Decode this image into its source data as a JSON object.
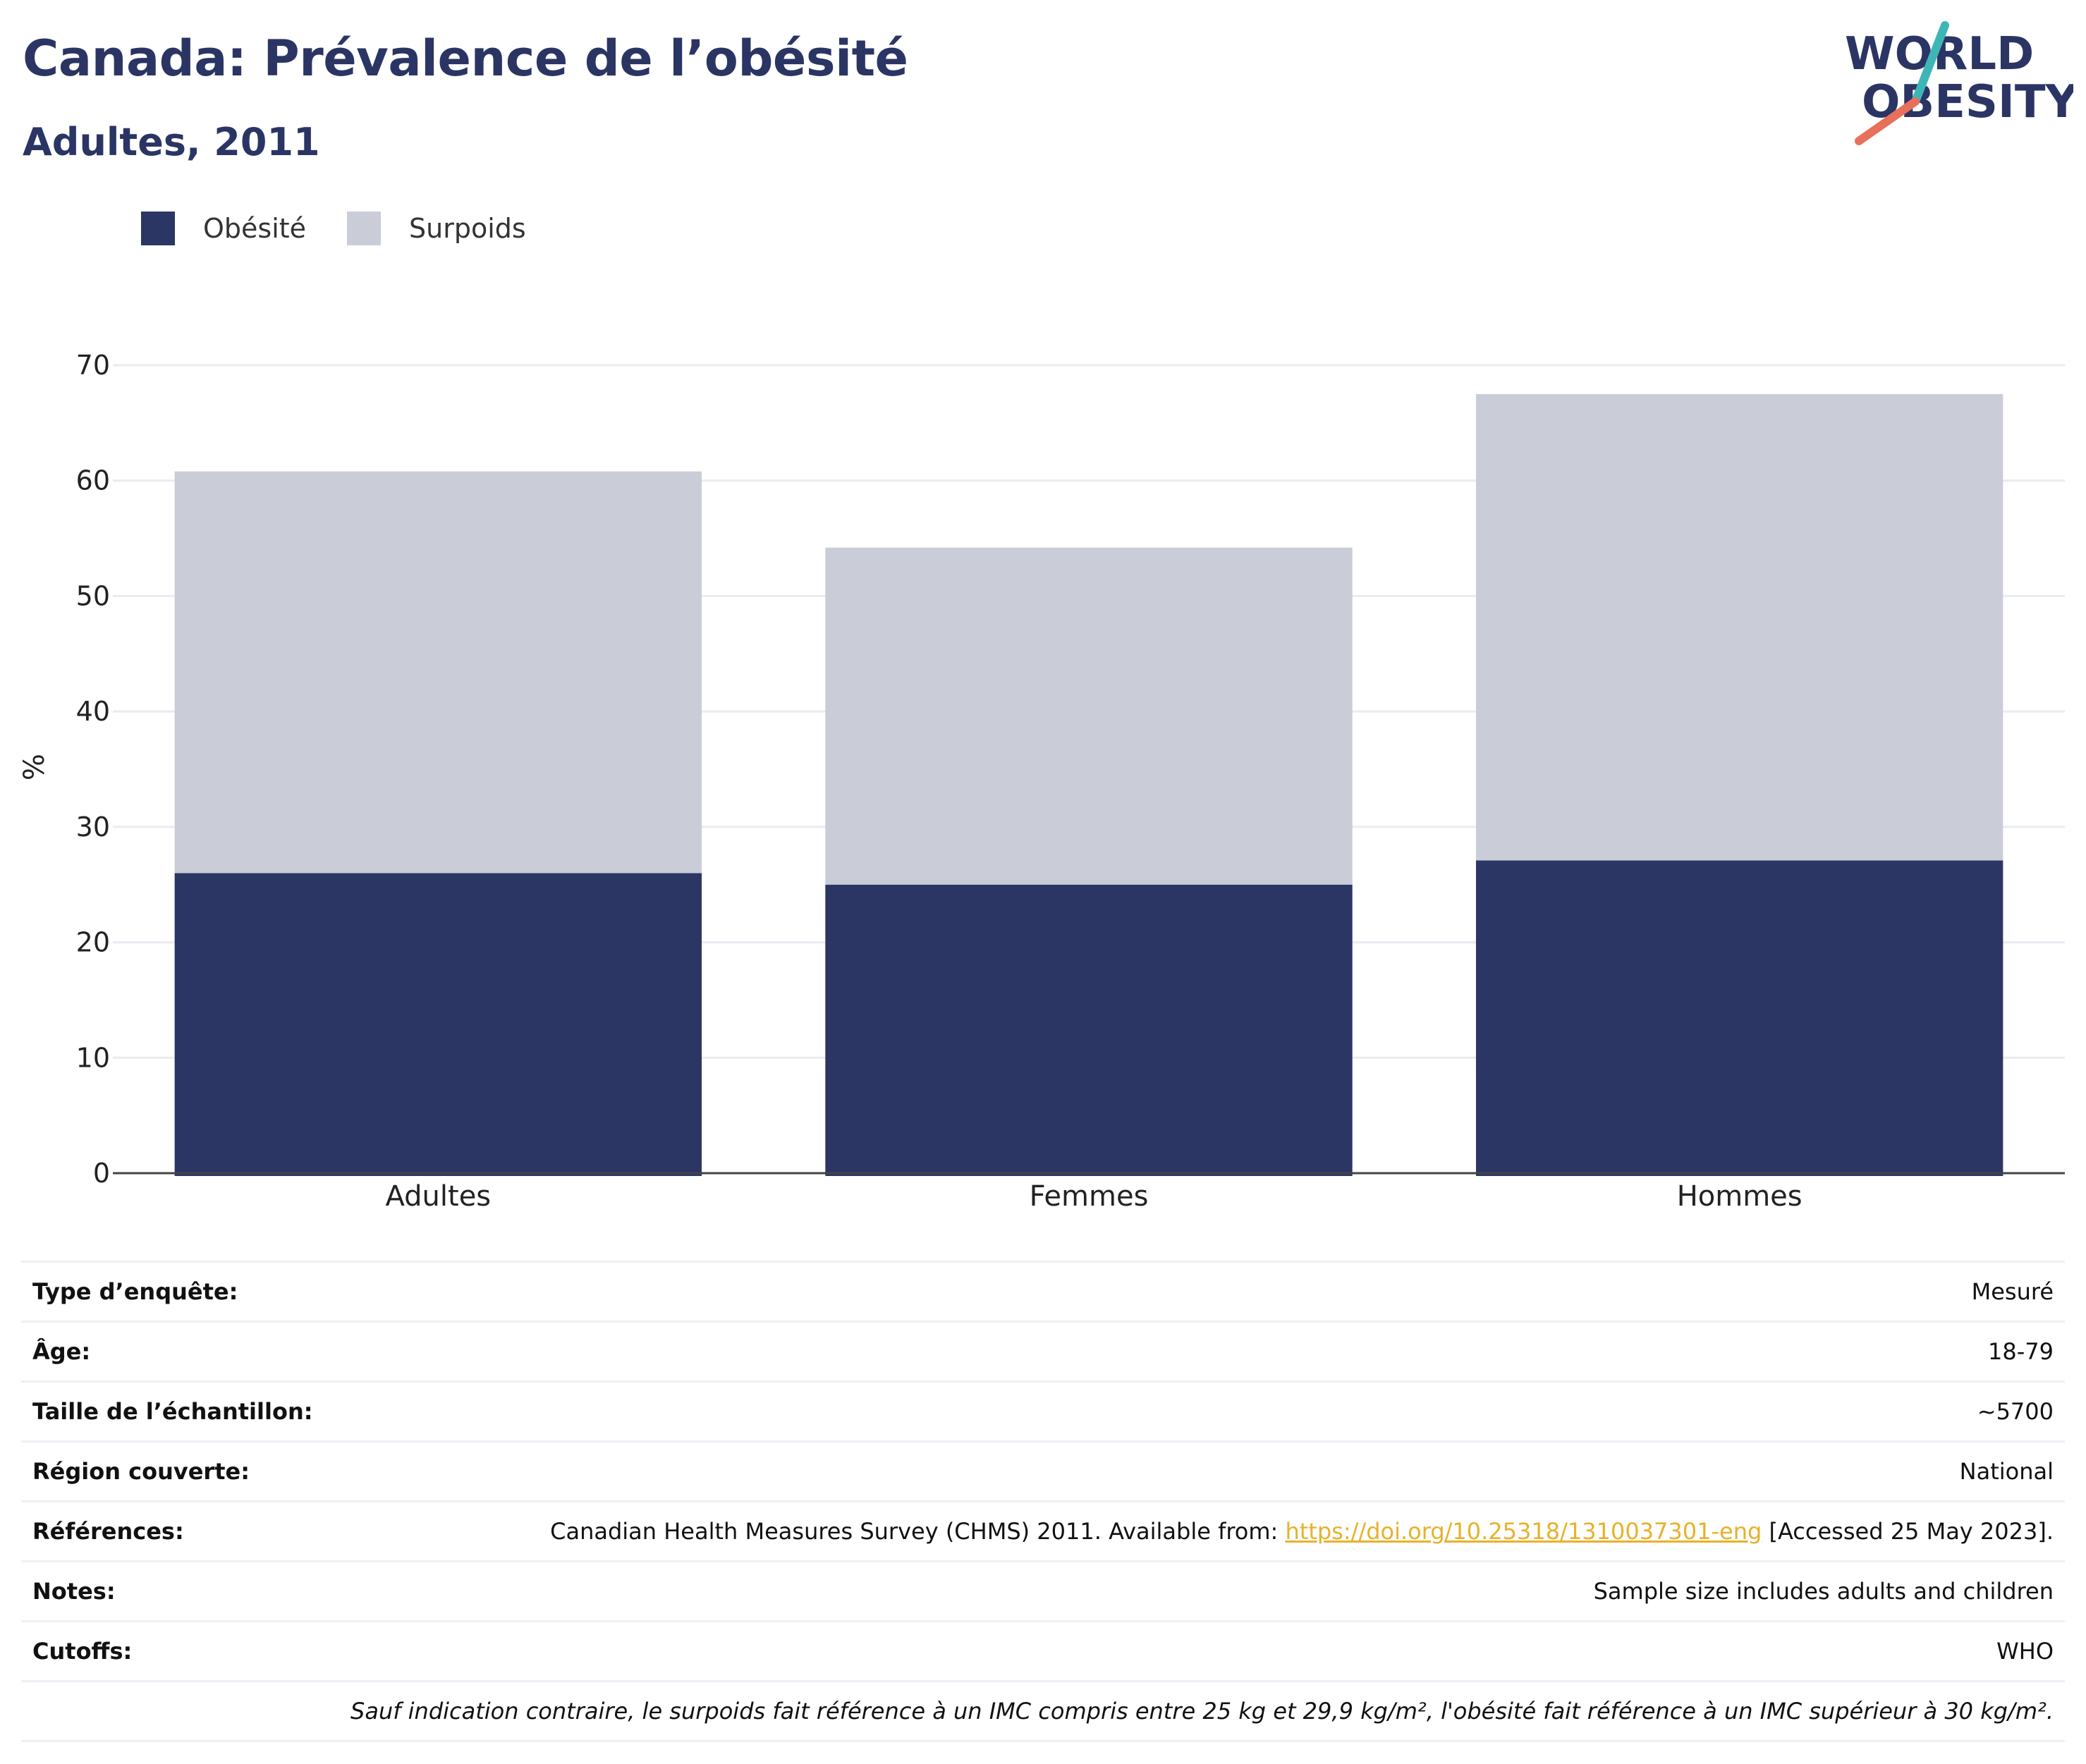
{
  "header": {
    "title": "Canada: Prévalence de l’obésité",
    "subtitle": "Adultes, 2011",
    "logo": {
      "line1": "WORLD",
      "line2": "OBESITY",
      "icon": "slash-mark-icon",
      "accent_colors": [
        "#3fb6b6",
        "#e8705a"
      ]
    }
  },
  "chart_data": {
    "type": "bar",
    "stacked": true,
    "categories": [
      "Adultes",
      "Femmes",
      "Hommes"
    ],
    "series": [
      {
        "name": "Obésité",
        "values": [
          26.0,
          25.0,
          27.1
        ],
        "color": "#2b3664"
      },
      {
        "name": "Surpoids",
        "values": [
          34.8,
          29.2,
          40.4
        ],
        "color": "#cacdd8"
      }
    ],
    "ylabel": "%",
    "xlabel": "",
    "ylim": [
      0,
      70
    ],
    "yticks": [
      0,
      10,
      20,
      30,
      40,
      50,
      60,
      70
    ],
    "grid": true,
    "legend_position": "top-left"
  },
  "info_table": {
    "rows": [
      {
        "label": "Type d’enquête:",
        "value": "Mesuré"
      },
      {
        "label": "Âge:",
        "value": "18-79"
      },
      {
        "label": "Taille de l’échantillon:",
        "value": "~5700"
      },
      {
        "label": "Région couverte:",
        "value": "National"
      }
    ],
    "references": {
      "label": "Références:",
      "text_before": "Canadian Health Measures Survey (CHMS) 2011. Available from: ",
      "link_text": "https://doi.org/10.25318/1310037301-eng",
      "text_after": " [Accessed 25 May 2023]."
    },
    "rows2": [
      {
        "label": "Notes:",
        "value": "Sample size includes adults and children"
      },
      {
        "label": "Cutoffs:",
        "value": "WHO"
      }
    ],
    "footnote": "Sauf indication contraire, le surpoids fait référence à un IMC compris entre 25 kg et 29,9 kg/m², l'obésité fait référence à un IMC supérieur à 30 kg/m²."
  }
}
